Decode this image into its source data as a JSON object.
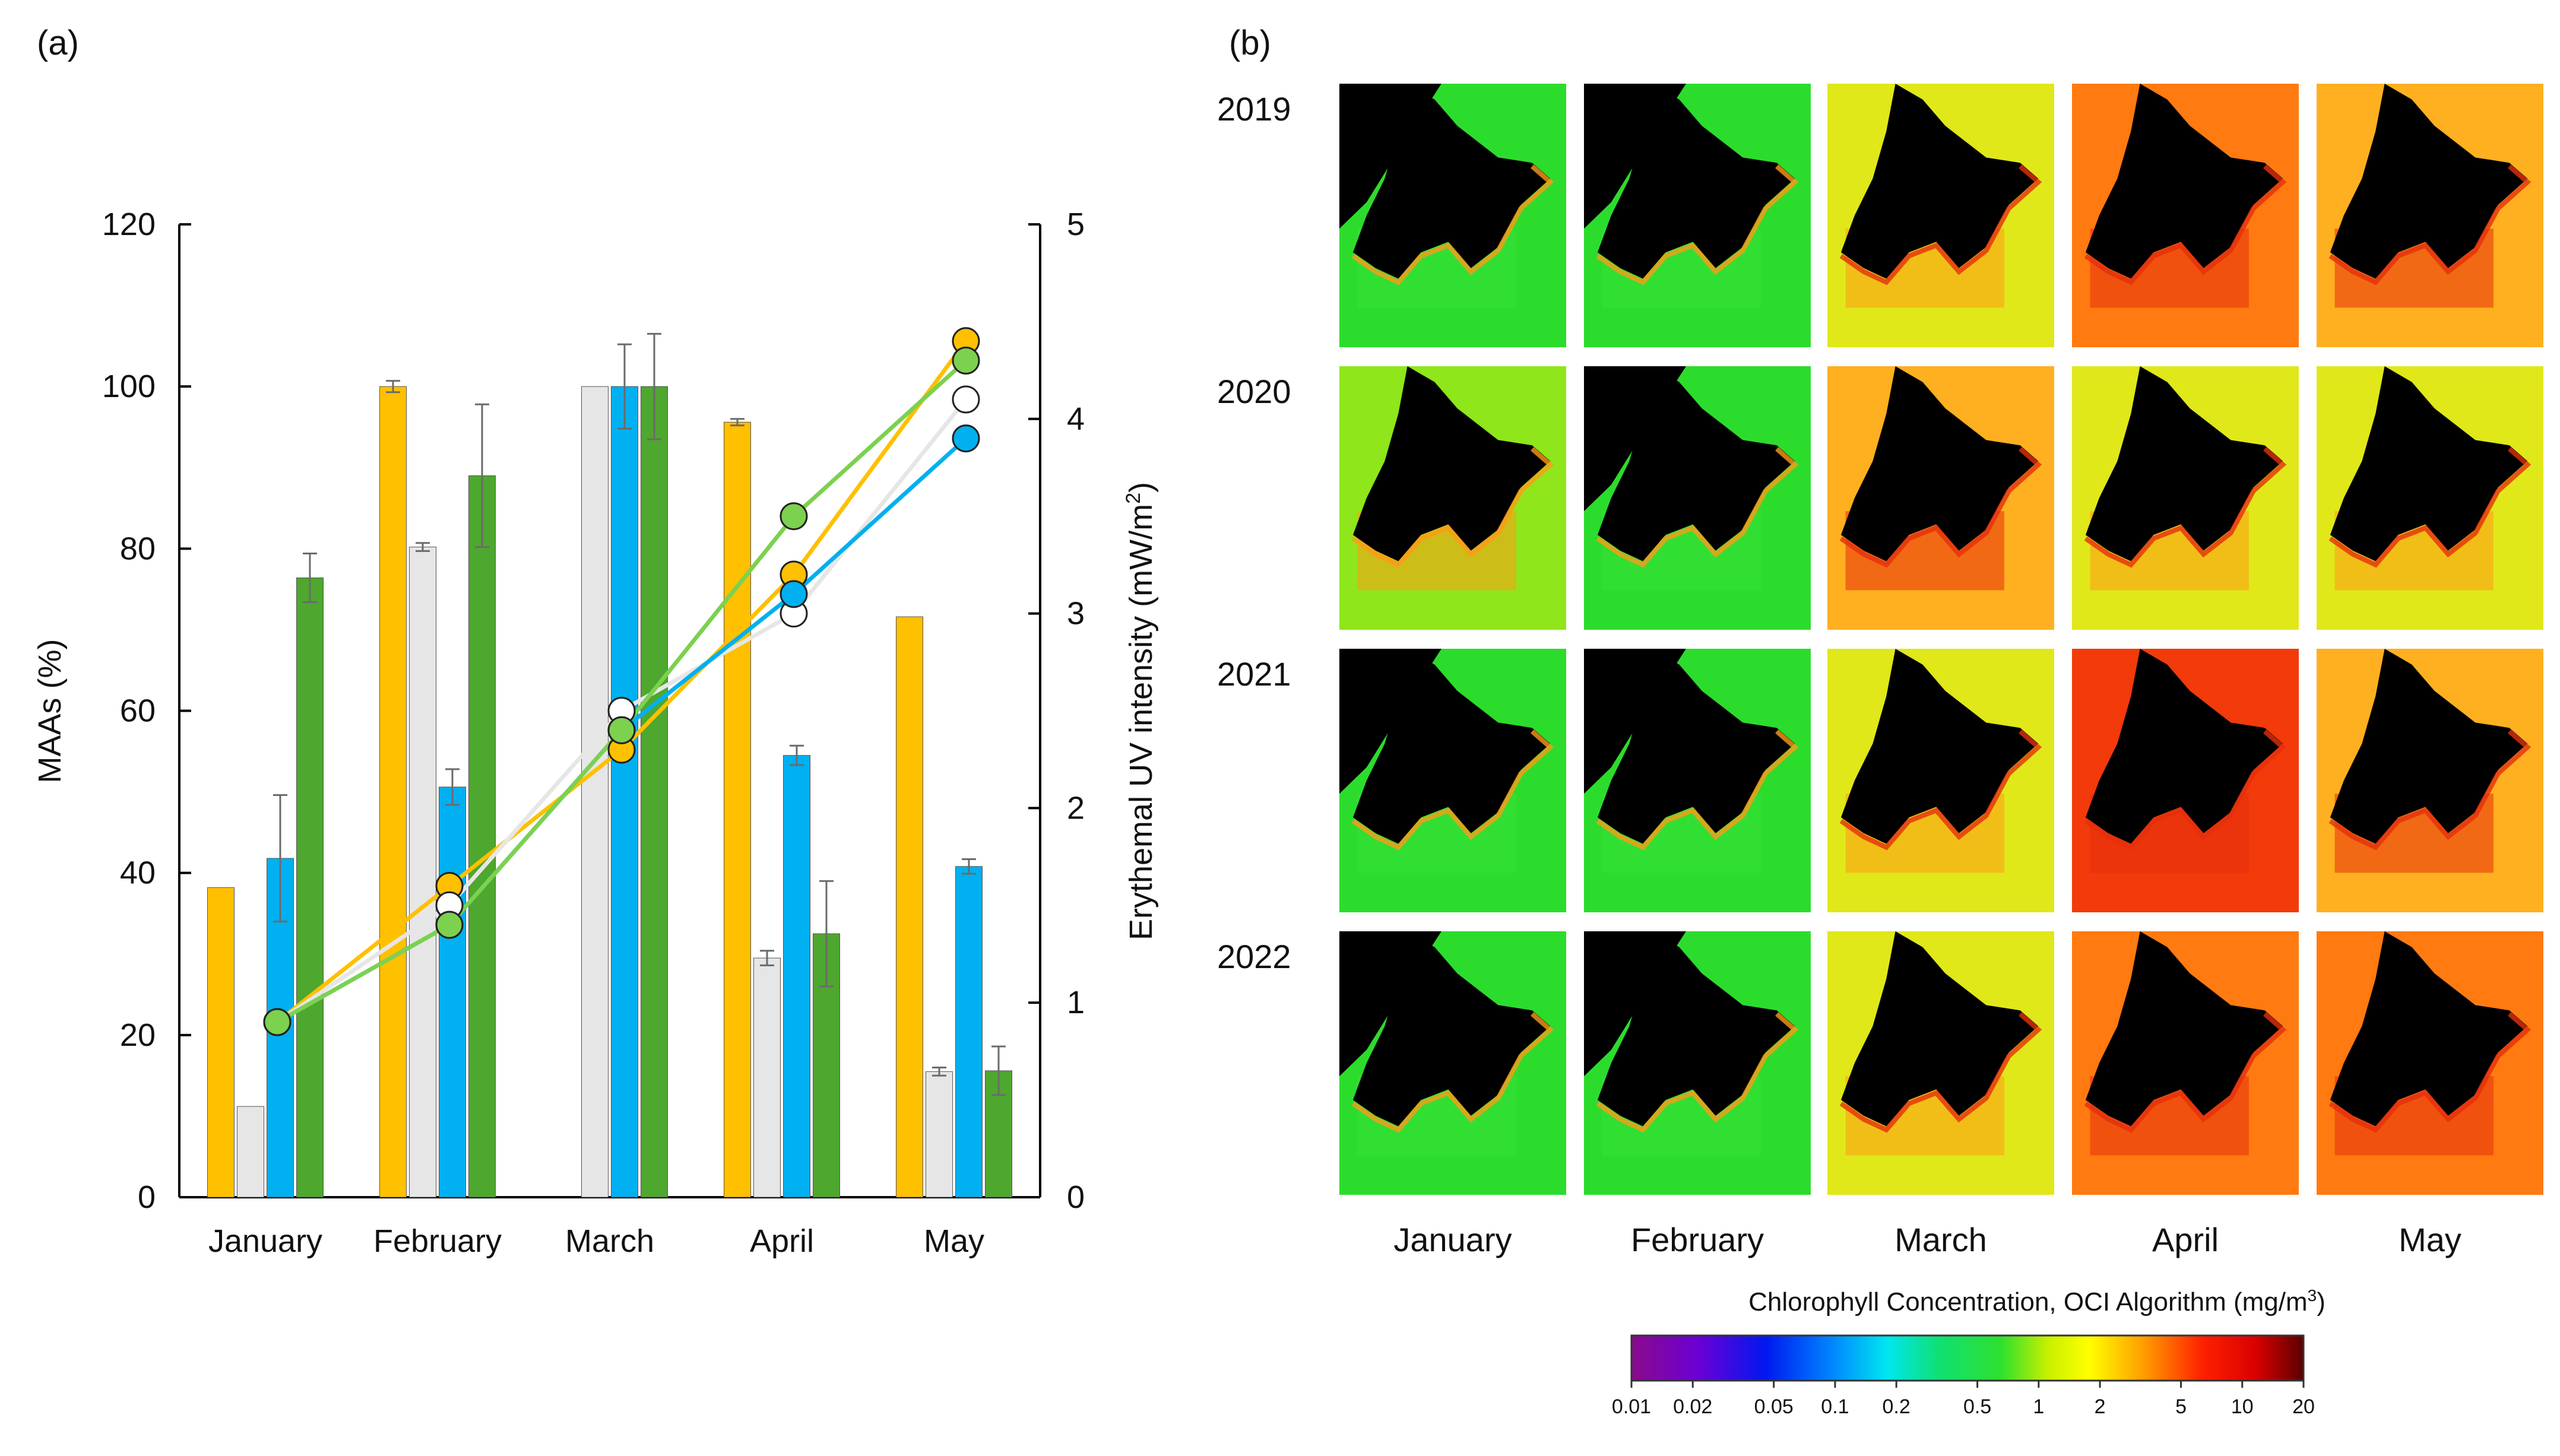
{
  "panel_labels": {
    "a": "(a)",
    "b": "(b)"
  },
  "chart_data": [
    {
      "type": "bar+line",
      "panel": "(a)",
      "categories": [
        "January",
        "February",
        "March",
        "April",
        "May"
      ],
      "ylabel_left": "MAAs (%)",
      "ylabel_right_main": "Erythemal UV intensity (mW/m",
      "ylabel_right_sup": "2",
      "ylabel_right_close": ")",
      "ylim_left": [
        0,
        120
      ],
      "yticks_left": [
        "0",
        "20",
        "40",
        "60",
        "80",
        "100",
        "120"
      ],
      "ylim_right": [
        0,
        5
      ],
      "yticks_right": [
        "0",
        "1",
        "2",
        "3",
        "4",
        "5"
      ],
      "bar_series": [
        {
          "name": "2019",
          "color": "#FFC000",
          "values": [
            38.2,
            100.0,
            0.0,
            95.6,
            71.6
          ],
          "errors": [
            0.0,
            0.7,
            0.0,
            0.4,
            0.0
          ]
        },
        {
          "name": "2020",
          "color": "#E7E6E6",
          "values": [
            11.2,
            80.2,
            100.0,
            29.5,
            15.5
          ],
          "errors": [
            0.0,
            0.5,
            0.0,
            0.9,
            0.5
          ]
        },
        {
          "name": "2021",
          "color": "#00B0F0",
          "values": [
            41.8,
            50.6,
            100.0,
            54.5,
            40.8
          ],
          "errors": [
            7.8,
            2.2,
            5.2,
            1.2,
            0.9
          ]
        },
        {
          "name": "2022",
          "color": "#4EA72E",
          "values": [
            76.4,
            89.0,
            100.0,
            32.5,
            15.6
          ],
          "errors": [
            3.0,
            8.8,
            6.5,
            6.5,
            3.0
          ]
        }
      ],
      "line_series": [
        {
          "name": "2019",
          "color": "#FFC000",
          "values": [
            0.9,
            1.6,
            2.3,
            3.2,
            4.4
          ]
        },
        {
          "name": "2020",
          "color": "#E7E6E6",
          "values": [
            0.9,
            1.5,
            2.5,
            3.0,
            4.1
          ]
        },
        {
          "name": "2021",
          "color": "#00B0F0",
          "values": [
            0.9,
            1.4,
            2.4,
            3.1,
            3.9
          ]
        },
        {
          "name": "2022",
          "color": "#7CD14F",
          "values": [
            0.9,
            1.4,
            2.4,
            3.5,
            4.3
          ]
        }
      ]
    },
    {
      "type": "heatmap",
      "panel": "(b)",
      "years": [
        "2019",
        "2020",
        "2021",
        "2022"
      ],
      "months": [
        "January",
        "February",
        "March",
        "April",
        "May"
      ],
      "chlorophyll_level": [
        [
          0.5,
          0.6,
          1.2,
          3.0,
          2.0
        ],
        [
          0.8,
          0.6,
          2.0,
          1.5,
          1.5
        ],
        [
          0.4,
          0.5,
          1.2,
          6.0,
          1.8
        ],
        [
          0.5,
          0.4,
          1.5,
          2.5,
          2.5
        ]
      ],
      "colorbar_title": "Chlorophyll Concentration, OCI Algorithm (mg/m",
      "colorbar_title_sup": "3",
      "colorbar_title_close": ")",
      "colorbar_ticks": [
        "0.01",
        "0.02",
        "0.05",
        "0.1",
        "0.2",
        "0.5",
        "1",
        "2",
        "5",
        "10",
        "20"
      ],
      "colorbar_range": [
        0.01,
        20
      ],
      "colors": {
        "ocean_low": "#00D2FF",
        "ocean_mid": "#22DD22",
        "land": "#000000"
      }
    }
  ]
}
